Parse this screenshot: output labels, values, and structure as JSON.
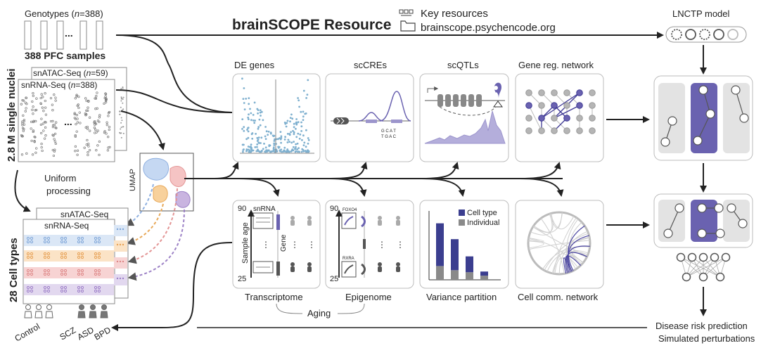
{
  "title": "brainSCOPE Resource",
  "key_resources": {
    "label": "Key resources",
    "url": "brainscope.psychencode.org"
  },
  "left": {
    "genotypes_prefix": "Genotypes (",
    "genotypes_n": "n",
    "genotypes_suffix": "=388)",
    "samples_label": "388 PFC samples",
    "nuclei_label": "2.8 M single nuclei",
    "atac_prefix": "snATAC-Seq (",
    "atac_n": "n",
    "atac_suffix": "=59)",
    "rna_prefix": "snRNA-Seq (",
    "rna_n": "n",
    "rna_suffix": "=388)",
    "ellipsis": "...",
    "uniform_line1": "Uniform",
    "uniform_line2": "processing",
    "umap_label": "UMAP",
    "celltypes_label": "28 Cell types",
    "atac_stack": "snATAC-Seq",
    "rna_stack": "snRNA-Seq",
    "groups": [
      "Control",
      "SCZ",
      "ASD",
      "BPD"
    ]
  },
  "panels_top": [
    {
      "label": "DE genes"
    },
    {
      "label": "scCREs"
    },
    {
      "label": "scQTLs"
    },
    {
      "label": "Gene reg. network"
    }
  ],
  "panels_bottom": [
    {
      "label": "Transcriptome"
    },
    {
      "label": "Epigenome"
    },
    {
      "label": "Variance partition"
    },
    {
      "label": "Cell comm. network"
    }
  ],
  "aging_label": "Aging",
  "transcriptome_panel": {
    "age_top": "90",
    "age_bottom": "25",
    "axis_label": "Sample age",
    "track_label": "snRNA",
    "gene_label": "Gene"
  },
  "epigenome_panel": {
    "age_top": "90",
    "age_bottom": "25",
    "tf1": "FOXO4",
    "tf2": "RXRA"
  },
  "variance_panel": {
    "legend": [
      "Cell type",
      "Individual"
    ],
    "colors": {
      "cell_type": "#3b3e8f",
      "individual": "#8a8a8a"
    },
    "bars": [
      {
        "cell_type": 0.62,
        "individual": 0.2
      },
      {
        "cell_type": 0.45,
        "individual": 0.14
      },
      {
        "cell_type": 0.23,
        "individual": 0.11
      },
      {
        "cell_type": 0.06,
        "individual": 0.06
      }
    ]
  },
  "right": {
    "lnctp_label": "LNCTP model",
    "disease_label": "Disease risk prediction",
    "perturb_label": "Simulated perturbations"
  },
  "colors": {
    "accent_purple": "#6a62b0",
    "light_purple": "#9c95cc",
    "dot_blue": "#7fb0cf",
    "row_blue": "#dbe7f6",
    "row_orange": "#fbe3c6",
    "row_red": "#f7d3d3",
    "row_purple": "#e2d8ef"
  }
}
